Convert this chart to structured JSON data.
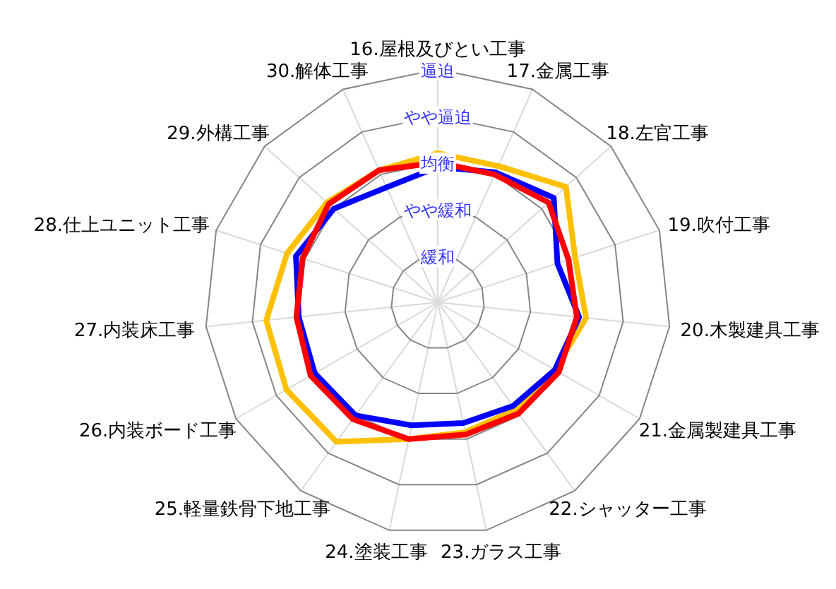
{
  "chart_data": {
    "type": "radar",
    "categories": [
      "16.屋根及びとい工事",
      "17.金属工事",
      "18.左官工事",
      "19.吹付工事",
      "20.木製建具工事",
      "21.金属製建具工事",
      "22.シャッター工事",
      "23.ガラス工事",
      "24.塗装工事",
      "25.軽量鉄骨下地工事",
      "26.内装ボード工事",
      "27.内装床工事",
      "28.仕上ユニット工事",
      "29.外構工事",
      "30.解体工事"
    ],
    "series": [
      {
        "color": "#ffc000",
        "values": [
          3.2,
          3.2,
          3.7,
          3.1,
          3.2,
          2.9,
          2.85,
          2.85,
          3.0,
          3.7,
          3.75,
          3.7,
          3.4,
          3.2,
          3.1
        ]
      },
      {
        "color": "#0000ff",
        "values": [
          2.9,
          3.05,
          3.35,
          2.7,
          3.05,
          2.9,
          2.75,
          2.65,
          2.7,
          3.0,
          3.05,
          3.0,
          3.2,
          3.0,
          2.7
        ]
      },
      {
        "color": "#ff0000",
        "values": [
          3.0,
          3.0,
          3.2,
          2.95,
          3.0,
          3.0,
          2.95,
          2.9,
          3.0,
          3.1,
          3.15,
          3.05,
          3.05,
          3.15,
          3.1
        ]
      }
    ],
    "ylim": [
      0,
      5
    ],
    "yticks": [
      {
        "value": 1,
        "label": "緩和"
      },
      {
        "value": 2,
        "label": "やや緩和"
      },
      {
        "value": 3,
        "label": "均衡"
      },
      {
        "value": 4,
        "label": "やや逼迫"
      },
      {
        "value": 5,
        "label": "逼迫"
      }
    ],
    "grid": true
  }
}
